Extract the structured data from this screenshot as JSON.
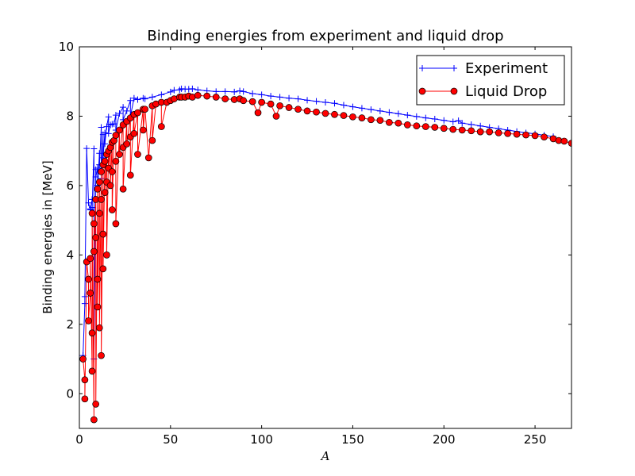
{
  "chart_data": {
    "type": "line",
    "title": "Binding energies from experiment and liquid drop",
    "xlabel": "A",
    "ylabel": "Binding energies in [MeV]",
    "xlim": [
      0,
      270
    ],
    "ylim": [
      -1,
      10
    ],
    "xticks": [
      0,
      50,
      100,
      150,
      200,
      250
    ],
    "yticks": [
      0,
      2,
      4,
      6,
      8,
      10
    ],
    "grid": false,
    "legend_position": "top-right",
    "series": [
      {
        "name": "Experiment",
        "color": "#0000ff",
        "marker": "plus",
        "points": [
          [
            2,
            1.1
          ],
          [
            3,
            2.6
          ],
          [
            3,
            2.8
          ],
          [
            4,
            7.07
          ],
          [
            5,
            5.5
          ],
          [
            6,
            5.3
          ],
          [
            6,
            5.33
          ],
          [
            7,
            5.6
          ],
          [
            7,
            5.37
          ],
          [
            8,
            7.06
          ],
          [
            8,
            1.0
          ],
          [
            9,
            6.46
          ],
          [
            9,
            6.25
          ],
          [
            10,
            6.5
          ],
          [
            10,
            6.0
          ],
          [
            11,
            6.93
          ],
          [
            11,
            6.6
          ],
          [
            12,
            7.68
          ],
          [
            12,
            6.2
          ],
          [
            13,
            7.47
          ],
          [
            13,
            6.8
          ],
          [
            14,
            7.52
          ],
          [
            14,
            7.2
          ],
          [
            15,
            7.7
          ],
          [
            16,
            7.98
          ],
          [
            16,
            7.5
          ],
          [
            17,
            7.75
          ],
          [
            18,
            7.77
          ],
          [
            19,
            7.78
          ],
          [
            20,
            8.03
          ],
          [
            20,
            7.6
          ],
          [
            22,
            8.08
          ],
          [
            24,
            8.26
          ],
          [
            24,
            7.9
          ],
          [
            26,
            8.15
          ],
          [
            28,
            8.45
          ],
          [
            28,
            8.0
          ],
          [
            30,
            8.52
          ],
          [
            32,
            8.48
          ],
          [
            35,
            8.52
          ],
          [
            36,
            8.5
          ],
          [
            40,
            8.55
          ],
          [
            45,
            8.62
          ],
          [
            50,
            8.7
          ],
          [
            52,
            8.75
          ],
          [
            55,
            8.76
          ],
          [
            56,
            8.79
          ],
          [
            58,
            8.78
          ],
          [
            60,
            8.78
          ],
          [
            62,
            8.79
          ],
          [
            65,
            8.76
          ],
          [
            70,
            8.73
          ],
          [
            75,
            8.71
          ],
          [
            80,
            8.71
          ],
          [
            85,
            8.7
          ],
          [
            88,
            8.73
          ],
          [
            90,
            8.71
          ],
          [
            95,
            8.65
          ],
          [
            100,
            8.62
          ],
          [
            105,
            8.58
          ],
          [
            110,
            8.55
          ],
          [
            115,
            8.52
          ],
          [
            120,
            8.5
          ],
          [
            125,
            8.46
          ],
          [
            130,
            8.43
          ],
          [
            135,
            8.4
          ],
          [
            140,
            8.37
          ],
          [
            145,
            8.32
          ],
          [
            150,
            8.27
          ],
          [
            155,
            8.23
          ],
          [
            160,
            8.19
          ],
          [
            165,
            8.15
          ],
          [
            170,
            8.11
          ],
          [
            175,
            8.07
          ],
          [
            180,
            8.03
          ],
          [
            185,
            7.99
          ],
          [
            190,
            7.95
          ],
          [
            195,
            7.92
          ],
          [
            200,
            7.88
          ],
          [
            205,
            7.84
          ],
          [
            208,
            7.87
          ],
          [
            210,
            7.8
          ],
          [
            215,
            7.76
          ],
          [
            220,
            7.72
          ],
          [
            225,
            7.68
          ],
          [
            230,
            7.64
          ],
          [
            235,
            7.6
          ],
          [
            240,
            7.56
          ],
          [
            245,
            7.52
          ],
          [
            250,
            7.49
          ],
          [
            255,
            7.45
          ],
          [
            260,
            7.41
          ]
        ]
      },
      {
        "name": "Liquid Drop",
        "color": "#ff0000",
        "marker": "circle",
        "points": [
          [
            2,
            1.0
          ],
          [
            3,
            0.4
          ],
          [
            3,
            -0.15
          ],
          [
            4,
            3.8
          ],
          [
            5,
            3.3
          ],
          [
            5,
            2.1
          ],
          [
            6,
            2.9
          ],
          [
            6,
            3.9
          ],
          [
            7,
            0.65
          ],
          [
            7,
            1.75
          ],
          [
            7,
            5.2
          ],
          [
            8,
            -0.75
          ],
          [
            8,
            4.9
          ],
          [
            8,
            4.1
          ],
          [
            9,
            5.6
          ],
          [
            9,
            4.5
          ],
          [
            9,
            -0.3
          ],
          [
            10,
            5.9
          ],
          [
            10,
            3.3
          ],
          [
            10,
            2.5
          ],
          [
            11,
            6.1
          ],
          [
            11,
            5.2
          ],
          [
            11,
            1.9
          ],
          [
            12,
            6.4
          ],
          [
            12,
            5.6
          ],
          [
            12,
            1.1
          ],
          [
            13,
            6.6
          ],
          [
            13,
            4.6
          ],
          [
            13,
            3.6
          ],
          [
            14,
            6.7
          ],
          [
            14,
            5.8
          ],
          [
            15,
            6.9
          ],
          [
            15,
            6.1
          ],
          [
            15,
            4.0
          ],
          [
            16,
            7.0
          ],
          [
            16,
            6.5
          ],
          [
            17,
            7.1
          ],
          [
            17,
            6.0
          ],
          [
            18,
            7.25
          ],
          [
            18,
            6.4
          ],
          [
            18,
            5.3
          ],
          [
            19,
            7.3
          ],
          [
            20,
            7.45
          ],
          [
            20,
            6.7
          ],
          [
            20,
            4.9
          ],
          [
            22,
            7.6
          ],
          [
            22,
            6.9
          ],
          [
            24,
            7.75
          ],
          [
            24,
            7.1
          ],
          [
            24,
            5.9
          ],
          [
            26,
            7.85
          ],
          [
            26,
            7.2
          ],
          [
            28,
            7.95
          ],
          [
            28,
            7.4
          ],
          [
            28,
            6.3
          ],
          [
            30,
            8.05
          ],
          [
            30,
            7.5
          ],
          [
            32,
            8.1
          ],
          [
            32,
            6.9
          ],
          [
            35,
            8.2
          ],
          [
            35,
            7.6
          ],
          [
            36,
            8.2
          ],
          [
            38,
            6.8
          ],
          [
            40,
            8.3
          ],
          [
            40,
            7.3
          ],
          [
            42,
            8.35
          ],
          [
            45,
            8.4
          ],
          [
            45,
            7.7
          ],
          [
            48,
            8.4
          ],
          [
            50,
            8.45
          ],
          [
            52,
            8.5
          ],
          [
            55,
            8.55
          ],
          [
            56,
            8.55
          ],
          [
            58,
            8.55
          ],
          [
            60,
            8.58
          ],
          [
            62,
            8.55
          ],
          [
            65,
            8.6
          ],
          [
            70,
            8.58
          ],
          [
            75,
            8.55
          ],
          [
            80,
            8.5
          ],
          [
            85,
            8.48
          ],
          [
            88,
            8.5
          ],
          [
            90,
            8.45
          ],
          [
            95,
            8.42
          ],
          [
            98,
            8.1
          ],
          [
            100,
            8.4
          ],
          [
            105,
            8.35
          ],
          [
            108,
            8.0
          ],
          [
            110,
            8.3
          ],
          [
            115,
            8.25
          ],
          [
            120,
            8.2
          ],
          [
            125,
            8.15
          ],
          [
            130,
            8.12
          ],
          [
            135,
            8.08
          ],
          [
            140,
            8.05
          ],
          [
            145,
            8.02
          ],
          [
            150,
            7.98
          ],
          [
            155,
            7.95
          ],
          [
            160,
            7.9
          ],
          [
            165,
            7.88
          ],
          [
            170,
            7.82
          ],
          [
            175,
            7.8
          ],
          [
            180,
            7.75
          ],
          [
            185,
            7.72
          ],
          [
            190,
            7.7
          ],
          [
            195,
            7.68
          ],
          [
            200,
            7.65
          ],
          [
            205,
            7.62
          ],
          [
            210,
            7.6
          ],
          [
            215,
            7.58
          ],
          [
            220,
            7.55
          ],
          [
            225,
            7.55
          ],
          [
            230,
            7.52
          ],
          [
            235,
            7.5
          ],
          [
            240,
            7.48
          ],
          [
            245,
            7.46
          ],
          [
            250,
            7.44
          ],
          [
            255,
            7.4
          ],
          [
            260,
            7.35
          ],
          [
            263,
            7.3
          ],
          [
            266,
            7.28
          ],
          [
            270,
            7.22
          ]
        ]
      }
    ]
  }
}
